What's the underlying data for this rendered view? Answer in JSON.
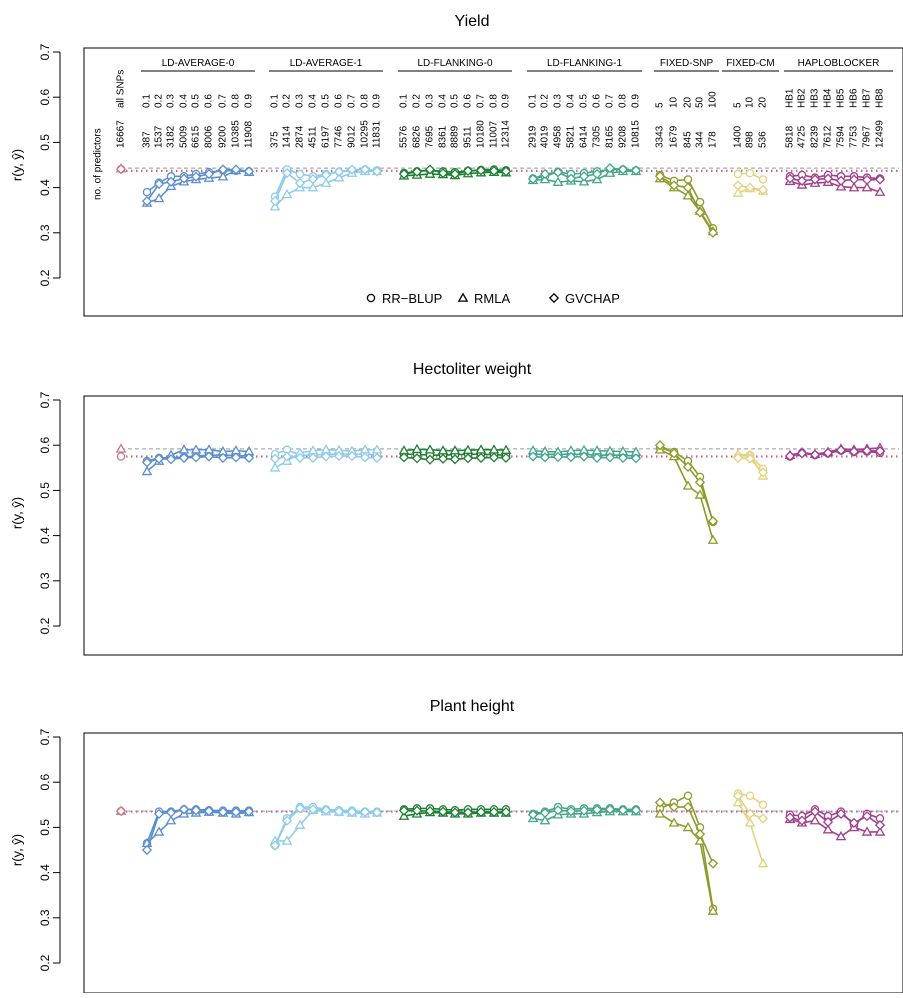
{
  "figure": {
    "ylabel": "r(y, ŷ)",
    "header_label": "no. of predictors",
    "legend": [
      {
        "label": "RR−BLUP",
        "marker": "circle"
      },
      {
        "label": "RMLA",
        "marker": "triangle"
      },
      {
        "label": "GVCHAP",
        "marker": "diamond"
      }
    ],
    "colors": {
      "LD-AVERAGE-0": "#5b8fcc",
      "LD-AVERAGE-1": "#8fcbeb",
      "LD-FLANKING-0": "#1e7f33",
      "LD-FLANKING-1": "#45a68d",
      "FIXED-SNP": "#8e9a2b",
      "FIXED-CM": "#e3d27f",
      "HAPLOBLOCKER": "#a0408f",
      "ref_dashed": "#999999",
      "ref_dotted": "#c8668a",
      "all_snps": "#c87a86"
    }
  },
  "groups": [
    {
      "name": "LD-AVERAGE-0",
      "labels": [
        "0.1",
        "0.2",
        "0.3",
        "0.4",
        "0.5",
        "0.6",
        "0.7",
        "0.8",
        "0.9"
      ],
      "counts": [
        "387",
        "1537",
        "3182",
        "5009",
        "6615",
        "8006",
        "9200",
        "10385",
        "11908"
      ]
    },
    {
      "name": "LD-AVERAGE-1",
      "labels": [
        "0.1",
        "0.2",
        "0.3",
        "0.4",
        "0.5",
        "0.6",
        "0.7",
        "0.8",
        "0.9"
      ],
      "counts": [
        "375",
        "1414",
        "2874",
        "4511",
        "6197",
        "7746",
        "9012",
        "10295",
        "11831"
      ]
    },
    {
      "name": "LD-FLANKING-0",
      "labels": [
        "0.1",
        "0.2",
        "0.3",
        "0.4",
        "0.5",
        "0.6",
        "0.7",
        "0.8",
        "0.9"
      ],
      "counts": [
        "5576",
        "6826",
        "7695",
        "8361",
        "8889",
        "9511",
        "10180",
        "11007",
        "12314"
      ]
    },
    {
      "name": "LD-FLANKING-1",
      "labels": [
        "0.1",
        "0.2",
        "0.3",
        "0.4",
        "0.5",
        "0.6",
        "0.7",
        "0.8",
        "0.9"
      ],
      "counts": [
        "2919",
        "4019",
        "4958",
        "5821",
        "6414",
        "7305",
        "8165",
        "9208",
        "10815"
      ]
    },
    {
      "name": "FIXED-SNP",
      "labels": [
        "5",
        "10",
        "20",
        "50",
        "100"
      ],
      "counts": [
        "3343",
        "1679",
        "845",
        "344",
        "178"
      ]
    },
    {
      "name": "FIXED-CM",
      "labels": [
        "5",
        "10",
        "20"
      ],
      "counts": [
        "1400",
        "898",
        "536"
      ]
    },
    {
      "name": "HAPLOBLOCKER",
      "labels": [
        "HB1",
        "HB2",
        "HB3",
        "HB4",
        "HB5",
        "HB6",
        "HB7",
        "HB8"
      ],
      "counts": [
        "5818",
        "4725",
        "8239",
        "7612",
        "7594",
        "7753",
        "7967",
        "12499"
      ]
    }
  ],
  "all_snps": {
    "label": "all SNPs",
    "count": "16667"
  },
  "chart_data": [
    {
      "type": "line",
      "title": "Yield",
      "ylabel": "r(y, ŷ)",
      "ylim": [
        0.1,
        0.7
      ],
      "yticks": [
        "0.2",
        "0.3",
        "0.4",
        "0.5",
        "0.6",
        "0.7"
      ],
      "legend_position": "bottom-center",
      "reference": {
        "RMLA": 0.443,
        "RR-BLUP": 0.437
      },
      "all_snps": {
        "RR-BLUP": 0.441,
        "RMLA": 0.442,
        "GVCHAP": 0.441
      },
      "series": {
        "LD-AVERAGE-0": {
          "RR-BLUP": [
            0.39,
            0.411,
            0.425,
            0.425,
            0.43,
            0.434,
            0.438,
            0.437,
            0.436
          ],
          "RMLA": [
            0.366,
            0.376,
            0.403,
            0.413,
            0.418,
            0.421,
            0.424,
            0.438,
            0.434
          ],
          "GVCHAP": [
            0.37,
            0.408,
            0.413,
            0.42,
            0.424,
            0.43,
            0.44,
            0.44,
            0.436
          ]
        },
        "LD-AVERAGE-1": {
          "RR-BLUP": [
            0.38,
            0.44,
            0.43,
            0.425,
            0.43,
            0.435,
            0.438,
            0.44,
            0.438
          ],
          "RMLA": [
            0.358,
            0.385,
            0.4,
            0.4,
            0.41,
            0.422,
            0.432,
            0.436,
            0.436
          ],
          "GVCHAP": [
            0.37,
            0.432,
            0.41,
            0.419,
            0.428,
            0.435,
            0.44,
            0.44,
            0.436
          ]
        },
        "LD-FLANKING-0": {
          "RR-BLUP": [
            0.432,
            0.436,
            0.438,
            0.436,
            0.434,
            0.437,
            0.439,
            0.44,
            0.438
          ],
          "RMLA": [
            0.426,
            0.428,
            0.43,
            0.429,
            0.427,
            0.431,
            0.433,
            0.434,
            0.433
          ],
          "GVCHAP": [
            0.43,
            0.435,
            0.44,
            0.432,
            0.43,
            0.437,
            0.438,
            0.437,
            0.436
          ]
        },
        "LD-FLANKING-1": {
          "RR-BLUP": [
            0.42,
            0.425,
            0.435,
            0.43,
            0.432,
            0.436,
            0.44,
            0.44,
            0.438
          ],
          "RMLA": [
            0.416,
            0.418,
            0.412,
            0.415,
            0.413,
            0.418,
            0.432,
            0.436,
            0.436
          ],
          "GVCHAP": [
            0.419,
            0.43,
            0.434,
            0.42,
            0.425,
            0.43,
            0.443,
            0.44,
            0.438
          ]
        },
        "FIXED-SNP": {
          "RR-BLUP": [
            0.428,
            0.415,
            0.418,
            0.368,
            0.31
          ],
          "RMLA": [
            0.42,
            0.4,
            0.382,
            0.348,
            0.303
          ],
          "GVCHAP": [
            0.425,
            0.405,
            0.4,
            0.345,
            0.3
          ]
        },
        "FIXED-CM": {
          "RR-BLUP": [
            0.43,
            0.432,
            0.418
          ],
          "RMLA": [
            0.388,
            0.398,
            0.392
          ],
          "GVCHAP": [
            0.405,
            0.4,
            0.395
          ]
        },
        "HAPLOBLOCKER": {
          "RR-BLUP": [
            0.425,
            0.428,
            0.422,
            0.428,
            0.425,
            0.425,
            0.422,
            0.42
          ],
          "RMLA": [
            0.414,
            0.406,
            0.41,
            0.412,
            0.402,
            0.4,
            0.4,
            0.39
          ],
          "GVCHAP": [
            0.42,
            0.415,
            0.418,
            0.42,
            0.415,
            0.418,
            0.417,
            0.418
          ]
        }
      }
    },
    {
      "type": "line",
      "title": "Hectoliter weight",
      "ylabel": "r(y, ŷ)",
      "ylim": [
        0.1,
        0.7
      ],
      "yticks": [
        "0.2",
        "0.3",
        "0.4",
        "0.5",
        "0.6",
        "0.7"
      ],
      "reference": {
        "RMLA": 0.592,
        "RR-BLUP": 0.575
      },
      "all_snps": {
        "RR-BLUP": 0.575,
        "RMLA": 0.592
      },
      "series": {
        "LD-AVERAGE-0": {
          "RR-BLUP": [
            0.565,
            0.572,
            0.572,
            0.574,
            0.576,
            0.578,
            0.578,
            0.577,
            0.576
          ],
          "RMLA": [
            0.542,
            0.565,
            0.578,
            0.59,
            0.59,
            0.59,
            0.586,
            0.588,
            0.586
          ],
          "GVCHAP": [
            0.562,
            0.57,
            0.569,
            0.572,
            0.573,
            0.575,
            0.572,
            0.573,
            0.572
          ]
        },
        "LD-AVERAGE-1": {
          "RR-BLUP": [
            0.58,
            0.59,
            0.578,
            0.578,
            0.58,
            0.58,
            0.58,
            0.58,
            0.578
          ],
          "RMLA": [
            0.55,
            0.565,
            0.583,
            0.588,
            0.59,
            0.589,
            0.587,
            0.59,
            0.59
          ],
          "GVCHAP": [
            0.57,
            0.575,
            0.572,
            0.572,
            0.575,
            0.576,
            0.576,
            0.573,
            0.572
          ]
        },
        "LD-FLANKING-0": {
          "RR-BLUP": [
            0.58,
            0.58,
            0.578,
            0.578,
            0.579,
            0.58,
            0.58,
            0.579,
            0.578
          ],
          "RMLA": [
            0.588,
            0.591,
            0.59,
            0.588,
            0.588,
            0.589,
            0.59,
            0.59,
            0.589
          ],
          "GVCHAP": [
            0.573,
            0.571,
            0.568,
            0.57,
            0.569,
            0.571,
            0.572,
            0.573,
            0.572
          ]
        },
        "LD-FLANKING-1": {
          "RR-BLUP": [
            0.58,
            0.58,
            0.58,
            0.58,
            0.58,
            0.578,
            0.578,
            0.578,
            0.576
          ],
          "RMLA": [
            0.588,
            0.586,
            0.585,
            0.588,
            0.589,
            0.588,
            0.587,
            0.586,
            0.585
          ],
          "GVCHAP": [
            0.575,
            0.573,
            0.574,
            0.574,
            0.575,
            0.572,
            0.573,
            0.572,
            0.571
          ]
        },
        "FIXED-SNP": {
          "RR-BLUP": [
            0.594,
            0.585,
            0.565,
            0.53,
            0.43
          ],
          "RMLA": [
            0.59,
            0.575,
            0.51,
            0.49,
            0.39
          ],
          "GVCHAP": [
            0.6,
            0.582,
            0.552,
            0.518,
            0.432
          ]
        },
        "FIXED-CM": {
          "RR-BLUP": [
            0.575,
            0.578,
            0.548
          ],
          "RMLA": [
            0.58,
            0.578,
            0.532
          ],
          "GVCHAP": [
            0.572,
            0.57,
            0.54
          ]
        },
        "HAPLOBLOCKER": {
          "RR-BLUP": [
            0.575,
            0.583,
            0.578,
            0.582,
            0.588,
            0.585,
            0.586,
            0.583
          ],
          "RMLA": [
            0.578,
            0.584,
            0.58,
            0.585,
            0.592,
            0.59,
            0.592,
            0.594
          ],
          "GVCHAP": [
            0.576,
            0.582,
            0.579,
            0.583,
            0.589,
            0.586,
            0.588,
            0.587
          ]
        }
      }
    },
    {
      "type": "line",
      "title": "Plant height",
      "ylabel": "r(y, ŷ)",
      "ylim": [
        0.1,
        0.7
      ],
      "yticks": [
        "0.2",
        "0.3",
        "0.4",
        "0.5",
        "0.6",
        "0.7"
      ],
      "reference": {
        "RMLA": 0.536,
        "RR-BLUP": 0.535
      },
      "all_snps": {
        "RR-BLUP": 0.536,
        "RMLA": 0.536,
        "GVCHAP": 0.536
      },
      "series": {
        "LD-AVERAGE-0": {
          "RR-BLUP": [
            0.465,
            0.535,
            0.535,
            0.54,
            0.54,
            0.538,
            0.537,
            0.537,
            0.537
          ],
          "RMLA": [
            0.465,
            0.49,
            0.515,
            0.53,
            0.532,
            0.534,
            0.532,
            0.53,
            0.533
          ],
          "GVCHAP": [
            0.45,
            0.53,
            0.533,
            0.54,
            0.538,
            0.536,
            0.534,
            0.534,
            0.535
          ]
        },
        "LD-AVERAGE-1": {
          "RR-BLUP": [
            0.46,
            0.52,
            0.545,
            0.545,
            0.54,
            0.538,
            0.537,
            0.535,
            0.535
          ],
          "RMLA": [
            0.47,
            0.47,
            0.505,
            0.538,
            0.535,
            0.534,
            0.532,
            0.53,
            0.532
          ],
          "GVCHAP": [
            0.46,
            0.515,
            0.542,
            0.54,
            0.538,
            0.535,
            0.534,
            0.534,
            0.533
          ]
        },
        "LD-FLANKING-0": {
          "RR-BLUP": [
            0.54,
            0.542,
            0.542,
            0.54,
            0.538,
            0.54,
            0.54,
            0.54,
            0.54
          ],
          "RMLA": [
            0.525,
            0.53,
            0.533,
            0.532,
            0.53,
            0.53,
            0.532,
            0.532,
            0.532
          ],
          "GVCHAP": [
            0.537,
            0.537,
            0.536,
            0.535,
            0.533,
            0.533,
            0.534,
            0.534,
            0.534
          ]
        },
        "LD-FLANKING-1": {
          "RR-BLUP": [
            0.53,
            0.535,
            0.545,
            0.54,
            0.542,
            0.542,
            0.542,
            0.54,
            0.54
          ],
          "RMLA": [
            0.52,
            0.515,
            0.528,
            0.53,
            0.53,
            0.533,
            0.535,
            0.535,
            0.535
          ],
          "GVCHAP": [
            0.528,
            0.532,
            0.538,
            0.536,
            0.537,
            0.539,
            0.54,
            0.538,
            0.538
          ]
        },
        "FIXED-SNP": {
          "RR-BLUP": [
            0.542,
            0.555,
            0.57,
            0.5,
            0.32
          ],
          "RMLA": [
            0.53,
            0.51,
            0.5,
            0.47,
            0.315
          ],
          "GVCHAP": [
            0.555,
            0.545,
            0.545,
            0.485,
            0.42
          ]
        },
        "FIXED-CM": {
          "RR-BLUP": [
            0.575,
            0.57,
            0.55
          ],
          "RMLA": [
            0.555,
            0.51,
            0.42
          ],
          "GVCHAP": [
            0.57,
            0.53,
            0.52
          ]
        },
        "HAPLOBLOCKER": {
          "RR-BLUP": [
            0.528,
            0.525,
            0.54,
            0.525,
            0.535,
            0.505,
            0.53,
            0.52
          ],
          "RMLA": [
            0.518,
            0.51,
            0.515,
            0.495,
            0.48,
            0.5,
            0.49,
            0.49
          ],
          "GVCHAP": [
            0.522,
            0.515,
            0.535,
            0.512,
            0.53,
            0.51,
            0.525,
            0.505
          ]
        }
      }
    }
  ]
}
